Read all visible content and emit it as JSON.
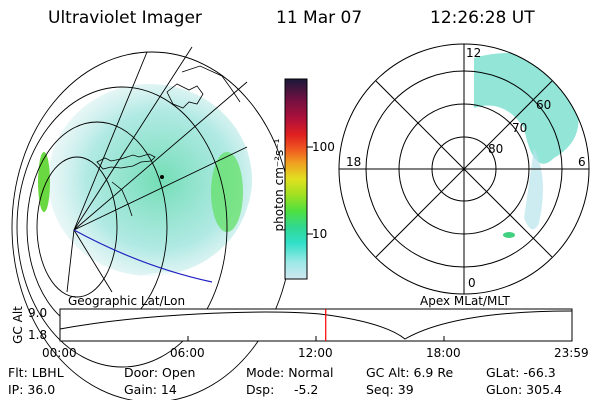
{
  "header": {
    "instrument": "Ultraviolet Imager",
    "date": "11 Mar 07",
    "time": "12:26:28 UT"
  },
  "colorbar": {
    "unit_label": "photon cm⁻²s⁻¹",
    "ticks": [
      "100",
      "10"
    ],
    "colors_top_to_bottom": [
      "#1a1a3a",
      "#6e1040",
      "#b0103a",
      "#e02020",
      "#f06020",
      "#f0a020",
      "#e0e020",
      "#a0e020",
      "#50e040",
      "#30d890",
      "#30e0c8",
      "#a0e8e8",
      "#d0e8f0"
    ]
  },
  "left_panel": {
    "caption": "Geographic Lat/Lon"
  },
  "right_panel": {
    "caption": "Apex MLat/MLT",
    "mlt_labels": {
      "top": "12",
      "left": "18",
      "right": "6",
      "bottom": "0"
    },
    "lat_labels": [
      "60",
      "70",
      "80"
    ]
  },
  "timeline": {
    "y_axis_label": "GC Alt",
    "y_ticks": [
      "9.0",
      "1.8"
    ],
    "x_ticks": [
      "00:00",
      "06:00",
      "12:00",
      "18:00",
      "23:59"
    ],
    "current_time_fraction": 0.519,
    "marker_color": "#ff0000"
  },
  "footer": {
    "filter": "Flt: LBHL",
    "ip": "IP: 36.0",
    "door": "Door: Open",
    "gain": "Gain: 14",
    "mode": "Mode: Normal",
    "dsp_label": "Dsp:",
    "dsp_value": "-5.2",
    "gc_alt": "GC Alt: 6.9 Re",
    "seq": "Seq: 39",
    "glat": "GLat: -66.3",
    "glon": "GLon: 305.4"
  }
}
